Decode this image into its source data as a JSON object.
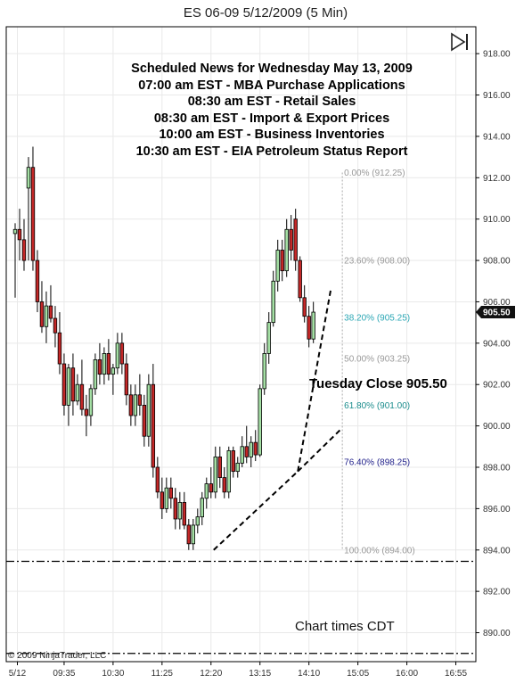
{
  "window": {
    "title": "ES 06-09  5/12/2009 (5 Min)"
  },
  "news": {
    "lines": [
      "Scheduled News for Wednesday May 13, 2009",
      "07:00 am EST - MBA Purchase Applications",
      "08:30 am EST - Retail Sales",
      "08:30 am EST - Import & Export Prices",
      "10:00 am EST - Business Inventories",
      "10:30 am EST - EIA Petroleum Status Report"
    ]
  },
  "annotations": {
    "tuesday_close": "Tuesday Close 905.50",
    "chart_times": "Chart times CDT",
    "copyright": "© 2009 NinjaTrader, LLC",
    "last_price": "905.50"
  },
  "colors": {
    "up_candle": "#a4dfa4",
    "down_candle": "#c42828",
    "fib_gray": "#999999",
    "fib_cyan": "#2aa6b4",
    "fib_teal": "#1a8c8c",
    "fib_navy": "#20208a",
    "price_tag": "#111111"
  },
  "chart_data": {
    "type": "candlestick",
    "title": "ES 06-09  5/12/2009 (5 Min)",
    "ylim": [
      888.6,
      919.3
    ],
    "y_ticks": [
      "918.00",
      "916.00",
      "914.00",
      "912.00",
      "910.00",
      "908.00",
      "906.00",
      "904.00",
      "902.00",
      "900.00",
      "898.00",
      "896.00",
      "894.00",
      "892.00",
      "890.00"
    ],
    "y_tick_values": [
      918,
      916,
      914,
      912,
      910,
      908,
      906,
      904,
      902,
      900,
      898,
      896,
      894,
      892,
      890
    ],
    "x_ticks": [
      "5/12",
      "09:35",
      "10:30",
      "11:25",
      "12:20",
      "13:15",
      "14:10",
      "15:05",
      "16:00",
      "16:55"
    ],
    "x_tick_bars": [
      0.5,
      11,
      22,
      33,
      44,
      55,
      66,
      77,
      88,
      99
    ],
    "x_range_bars": [
      -2,
      103.5
    ],
    "candles": [
      {
        "o": 909.3,
        "h": 909.8,
        "l": 906.2,
        "c": 909.5
      },
      {
        "o": 909.5,
        "h": 910.5,
        "l": 908.0,
        "c": 909.0
      },
      {
        "o": 909.0,
        "h": 910.0,
        "l": 907.5,
        "c": 908.0
      },
      {
        "o": 911.5,
        "h": 913.0,
        "l": 908.0,
        "c": 912.5
      },
      {
        "o": 912.5,
        "h": 913.5,
        "l": 907.5,
        "c": 908.0
      },
      {
        "o": 908.0,
        "h": 908.5,
        "l": 905.5,
        "c": 906.0
      },
      {
        "o": 906.0,
        "h": 907.0,
        "l": 904.5,
        "c": 904.8
      },
      {
        "o": 904.8,
        "h": 906.5,
        "l": 904.0,
        "c": 905.8
      },
      {
        "o": 905.8,
        "h": 906.8,
        "l": 905.0,
        "c": 905.2
      },
      {
        "o": 905.2,
        "h": 905.8,
        "l": 903.8,
        "c": 904.5
      },
      {
        "o": 904.5,
        "h": 905.5,
        "l": 902.5,
        "c": 903.0
      },
      {
        "o": 903.0,
        "h": 903.5,
        "l": 900.5,
        "c": 901.0
      },
      {
        "o": 901.0,
        "h": 903.0,
        "l": 900.0,
        "c": 902.8
      },
      {
        "o": 902.8,
        "h": 903.5,
        "l": 900.5,
        "c": 901.2
      },
      {
        "o": 901.2,
        "h": 902.5,
        "l": 901.0,
        "c": 902.0
      },
      {
        "o": 902.0,
        "h": 903.2,
        "l": 900.5,
        "c": 900.8
      },
      {
        "o": 900.8,
        "h": 901.5,
        "l": 899.5,
        "c": 900.5
      },
      {
        "o": 900.5,
        "h": 902.0,
        "l": 900.0,
        "c": 901.8
      },
      {
        "o": 901.8,
        "h": 903.5,
        "l": 901.5,
        "c": 903.2
      },
      {
        "o": 903.2,
        "h": 904.0,
        "l": 902.0,
        "c": 902.5
      },
      {
        "o": 902.5,
        "h": 903.8,
        "l": 902.0,
        "c": 903.5
      },
      {
        "o": 903.5,
        "h": 904.2,
        "l": 902.2,
        "c": 902.5
      },
      {
        "o": 902.5,
        "h": 903.0,
        "l": 901.5,
        "c": 902.8
      },
      {
        "o": 902.8,
        "h": 904.5,
        "l": 902.5,
        "c": 904.0
      },
      {
        "o": 904.0,
        "h": 904.5,
        "l": 902.5,
        "c": 903.0
      },
      {
        "o": 903.0,
        "h": 903.5,
        "l": 901.0,
        "c": 901.5
      },
      {
        "o": 901.5,
        "h": 902.0,
        "l": 900.0,
        "c": 900.5
      },
      {
        "o": 900.5,
        "h": 902.0,
        "l": 900.0,
        "c": 901.5
      },
      {
        "o": 901.5,
        "h": 902.5,
        "l": 900.5,
        "c": 901.0
      },
      {
        "o": 901.0,
        "h": 901.5,
        "l": 899.0,
        "c": 899.5
      },
      {
        "o": 899.5,
        "h": 902.5,
        "l": 899.0,
        "c": 902.0
      },
      {
        "o": 902.0,
        "h": 903.0,
        "l": 897.5,
        "c": 898.0
      },
      {
        "o": 898.0,
        "h": 898.5,
        "l": 896.5,
        "c": 896.8
      },
      {
        "o": 896.8,
        "h": 897.5,
        "l": 895.5,
        "c": 896.0
      },
      {
        "o": 896.0,
        "h": 897.5,
        "l": 895.8,
        "c": 897.0
      },
      {
        "o": 897.0,
        "h": 897.5,
        "l": 896.0,
        "c": 896.5
      },
      {
        "o": 896.5,
        "h": 897.0,
        "l": 895.0,
        "c": 895.5
      },
      {
        "o": 895.5,
        "h": 896.8,
        "l": 895.0,
        "c": 896.3
      },
      {
        "o": 896.3,
        "h": 896.8,
        "l": 895.0,
        "c": 895.2
      },
      {
        "o": 895.2,
        "h": 895.5,
        "l": 894.0,
        "c": 894.3
      },
      {
        "o": 894.3,
        "h": 895.5,
        "l": 894.0,
        "c": 895.2
      },
      {
        "o": 895.2,
        "h": 896.0,
        "l": 894.8,
        "c": 895.6
      },
      {
        "o": 895.6,
        "h": 896.8,
        "l": 895.2,
        "c": 896.5
      },
      {
        "o": 896.5,
        "h": 897.5,
        "l": 896.0,
        "c": 897.2
      },
      {
        "o": 897.2,
        "h": 898.0,
        "l": 896.5,
        "c": 896.8
      },
      {
        "o": 896.8,
        "h": 899.0,
        "l": 896.5,
        "c": 898.5
      },
      {
        "o": 898.5,
        "h": 899.0,
        "l": 897.0,
        "c": 897.5
      },
      {
        "o": 897.5,
        "h": 898.0,
        "l": 896.5,
        "c": 896.8
      },
      {
        "o": 896.8,
        "h": 899.0,
        "l": 896.5,
        "c": 898.8
      },
      {
        "o": 898.8,
        "h": 899.0,
        "l": 897.5,
        "c": 897.8
      },
      {
        "o": 897.8,
        "h": 898.5,
        "l": 897.5,
        "c": 898.2
      },
      {
        "o": 898.2,
        "h": 899.5,
        "l": 898.0,
        "c": 899.0
      },
      {
        "o": 899.0,
        "h": 900.0,
        "l": 898.2,
        "c": 898.5
      },
      {
        "o": 898.5,
        "h": 899.5,
        "l": 898.0,
        "c": 899.2
      },
      {
        "o": 899.2,
        "h": 899.8,
        "l": 898.3,
        "c": 898.6
      },
      {
        "o": 898.6,
        "h": 902.0,
        "l": 898.5,
        "c": 901.8
      },
      {
        "o": 901.8,
        "h": 904.0,
        "l": 901.5,
        "c": 903.5
      },
      {
        "o": 903.5,
        "h": 905.5,
        "l": 903.0,
        "c": 905.0
      },
      {
        "o": 905.0,
        "h": 907.5,
        "l": 904.8,
        "c": 907.0
      },
      {
        "o": 907.0,
        "h": 909.0,
        "l": 906.5,
        "c": 908.5
      },
      {
        "o": 908.5,
        "h": 909.0,
        "l": 907.0,
        "c": 907.5
      },
      {
        "o": 907.5,
        "h": 910.0,
        "l": 907.2,
        "c": 909.5
      },
      {
        "o": 909.5,
        "h": 910.2,
        "l": 908.0,
        "c": 908.5
      },
      {
        "o": 910.0,
        "h": 910.5,
        "l": 907.5,
        "c": 908.0
      },
      {
        "o": 908.0,
        "h": 908.2,
        "l": 906.0,
        "c": 906.2
      },
      {
        "o": 906.2,
        "h": 906.8,
        "l": 905.0,
        "c": 905.3
      },
      {
        "o": 905.3,
        "h": 905.8,
        "l": 903.8,
        "c": 904.2
      },
      {
        "o": 904.2,
        "h": 906.0,
        "l": 904.0,
        "c": 905.5
      }
    ],
    "candle_bars": [
      0,
      1,
      2,
      3,
      4,
      5,
      6,
      7,
      8,
      9,
      10,
      11,
      12,
      13,
      14,
      15,
      16,
      17,
      18,
      19,
      20,
      21,
      22,
      23,
      24,
      25,
      26,
      27,
      28,
      29,
      30,
      31,
      32,
      33,
      34,
      35,
      36,
      37,
      38,
      39,
      40,
      41,
      42,
      43,
      44,
      45,
      46,
      47,
      48,
      49,
      50,
      51,
      52,
      53,
      54,
      55,
      56,
      57,
      58,
      59,
      60,
      61,
      62,
      63,
      64,
      65,
      66,
      67
    ],
    "fibonacci": {
      "bar_start": 73.5,
      "bar_end": 75.5,
      "levels": [
        {
          "label": "0.00% (912.25)",
          "price": 912.25,
          "color": "#999999"
        },
        {
          "label": "23.60% (908.00)",
          "price": 908.0,
          "color": "#999999"
        },
        {
          "label": "38.20% (905.25)",
          "price": 905.25,
          "color": "#2aa6b4"
        },
        {
          "label": "50.00% (903.25)",
          "price": 903.25,
          "color": "#999999"
        },
        {
          "label": "61.80% (901.00)",
          "price": 901.0,
          "color": "#1a8c8c"
        },
        {
          "label": "76.40% (898.25)",
          "price": 898.25,
          "color": "#20208a"
        },
        {
          "label": "100.00% (894.00)",
          "price": 894.0,
          "color": "#999999"
        }
      ]
    },
    "trend_lines": [
      {
        "x1": 44.6,
        "y1": 894.0,
        "x2": 63.5,
        "y2": 897.8
      },
      {
        "x1": 63.5,
        "y1": 897.8,
        "x2": 73.0,
        "y2": 899.8
      },
      {
        "x1": 63.5,
        "y1": 897.8,
        "x2": 71.0,
        "y2": 906.7
      }
    ],
    "horizontal_lines": [
      893.45,
      889.0
    ]
  }
}
